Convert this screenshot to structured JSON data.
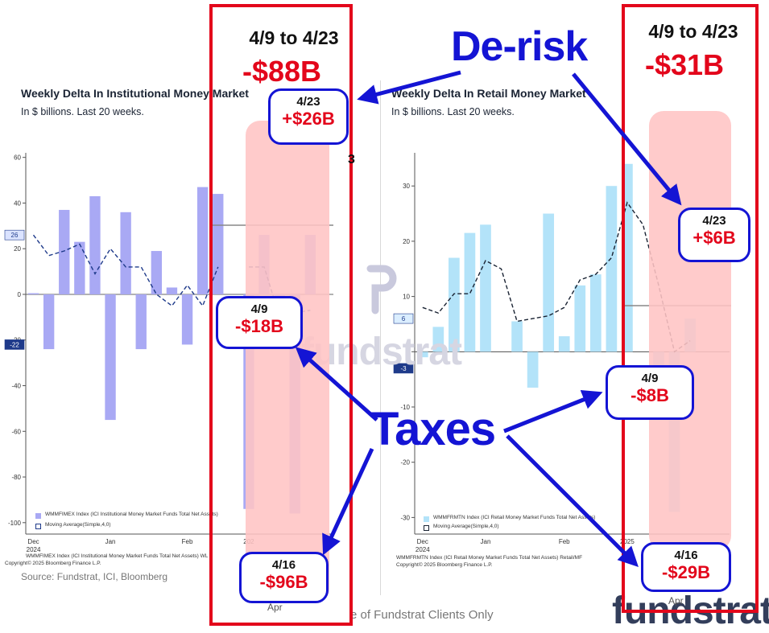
{
  "left_chart": {
    "title": "Weekly Delta In Institutional Money Market",
    "subtitle": "In $ billions. Last 20 weeks.",
    "legend": [
      "WMMFIMEX Index (ICI Institutional Money Market Funds Total Net Assets)",
      "Moving Average(Simple,4,0)"
    ],
    "footnote1": "WMMFIMEX Index (ICI Institutional Money Market Funds Total Net Assets) WL",
    "footnote2": "Copyright© 2025 Bloomberg Finance L.P.",
    "source": "Source: Fundstrat, ICI, Bloomberg",
    "last_value_tag": "-22",
    "ma_value_tag": "26"
  },
  "right_chart": {
    "title": "Weekly Delta In Retail Money Market",
    "subtitle": "In $ billions. Last 20 weeks.",
    "legend": [
      "WMMFRMTN Index (ICI Retail Money Market Funds Total Net Assets)",
      "Moving Average(Simple,4,0)"
    ],
    "footnote1": "WMMFRMTN Index (ICI Retail Money Market Funds Total Net Assets) Retail/MF",
    "footnote2": "Copyright© 2025 Bloomberg Finance L.P.",
    "last_value_tag": "-3",
    "ma_value_tag": "6"
  },
  "watermark": "fundstrat",
  "disclaimer": "e of Fundstrat Clients Only",
  "annotations": {
    "left": {
      "range": "4/9 to 4/23",
      "total": "-$88B",
      "callouts": [
        {
          "date": "4/23",
          "value": "+$26B"
        },
        {
          "date": "4/9",
          "value": "-$18B"
        },
        {
          "date": "4/16",
          "value": "-$96B"
        }
      ]
    },
    "right": {
      "range": "4/9 to 4/23",
      "total": "-$31B",
      "callouts": [
        {
          "date": "4/23",
          "value": "+$6B"
        },
        {
          "date": "4/9",
          "value": "-$8B"
        },
        {
          "date": "4/16",
          "value": "-$29B"
        }
      ]
    },
    "de_risk_label": "De-risk",
    "taxes_label": "Taxes",
    "visible_fragment": "3",
    "apr_label": "Apr"
  },
  "chart_data": [
    {
      "type": "bar",
      "title": "Weekly Delta In Institutional Money Market",
      "subtitle": "In $ billions. Last 20 weeks.",
      "ylim": [
        -105,
        62
      ],
      "yticks": [
        60,
        40,
        20,
        0,
        -20,
        -40,
        -60,
        -80,
        -100
      ],
      "xticks": [
        "Dec\n2024",
        "Jan",
        "Feb",
        "202"
      ],
      "series": [
        {
          "name": "WMMFIMEX Index (ICI Institutional Money Market Funds Total Net Assets)",
          "values": [
            0.5,
            -24,
            37,
            23,
            43,
            -55,
            36,
            -24,
            19,
            3,
            -22,
            47,
            44,
            null,
            -94,
            26,
            -18,
            -96,
            26,
            null
          ],
          "color": "#a9a9f4"
        },
        {
          "name": "Moving Average(Simple,4,0)",
          "values": [
            26,
            17,
            19,
            22,
            9,
            20,
            12,
            12,
            0,
            -5,
            4,
            -5,
            12,
            null,
            12,
            12,
            -10,
            -8,
            -7,
            null
          ],
          "color": "#1e3a8a"
        }
      ]
    },
    {
      "type": "bar",
      "title": "Weekly Delta In Retail Money Market",
      "subtitle": "In $ billions. Last 20 weeks.",
      "ylim": [
        -33,
        36
      ],
      "yticks": [
        30,
        20,
        10,
        0,
        -10,
        -20,
        -30
      ],
      "xticks": [
        "Dec\n2024",
        "Jan",
        "Feb",
        "2025"
      ],
      "series": [
        {
          "name": "WMMFRMTN Index (ICI Retail Money Market Funds Total Net Assets)",
          "values": [
            -1,
            4.5,
            17,
            21.5,
            23,
            null,
            5.5,
            -6.5,
            25,
            2.8,
            12,
            14,
            30,
            34,
            null,
            -8,
            -29,
            6,
            null,
            null
          ],
          "color": "#b3e3f9"
        },
        {
          "name": "Moving Average(Simple,4,0)",
          "values": [
            8,
            7,
            10.5,
            10.5,
            16.5,
            15,
            5.5,
            6,
            6.5,
            8,
            13,
            14,
            17,
            27,
            23,
            12,
            0,
            2,
            null,
            null
          ],
          "color": "#1a2333"
        }
      ]
    }
  ]
}
